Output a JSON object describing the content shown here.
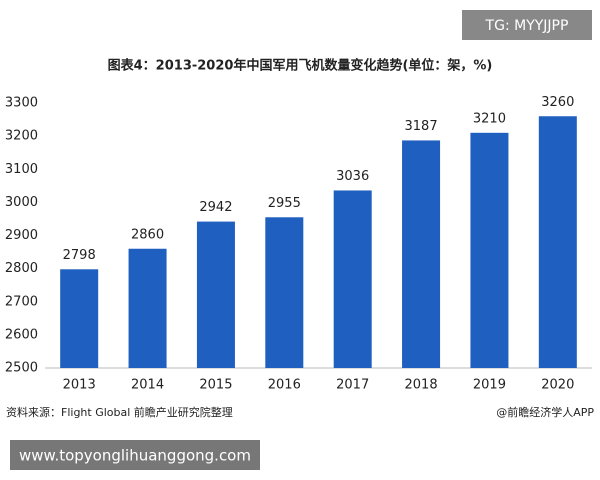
{
  "chart_data": {
    "type": "bar",
    "title": "图表4：2013-2020年中国军用飞机数量变化趋势(单位：架，%)",
    "categories": [
      "2013",
      "2014",
      "2015",
      "2016",
      "2017",
      "2018",
      "2019",
      "2020"
    ],
    "values": [
      2798,
      2860,
      2942,
      2955,
      3036,
      3187,
      3210,
      3260
    ],
    "color": "#1f5fbf",
    "ylim": [
      2500,
      3300
    ],
    "yticks": [
      2500,
      2600,
      2700,
      2800,
      2900,
      3000,
      3100,
      3200,
      3300
    ],
    "grid": false,
    "source": "资料来源：Flight Global 前瞻产业研究院整理",
    "credit": "@前瞻经济学人APP"
  },
  "overlays": {
    "tag": "TG: MYYJJPP",
    "url": "www.topyonglihuanggong.com"
  }
}
